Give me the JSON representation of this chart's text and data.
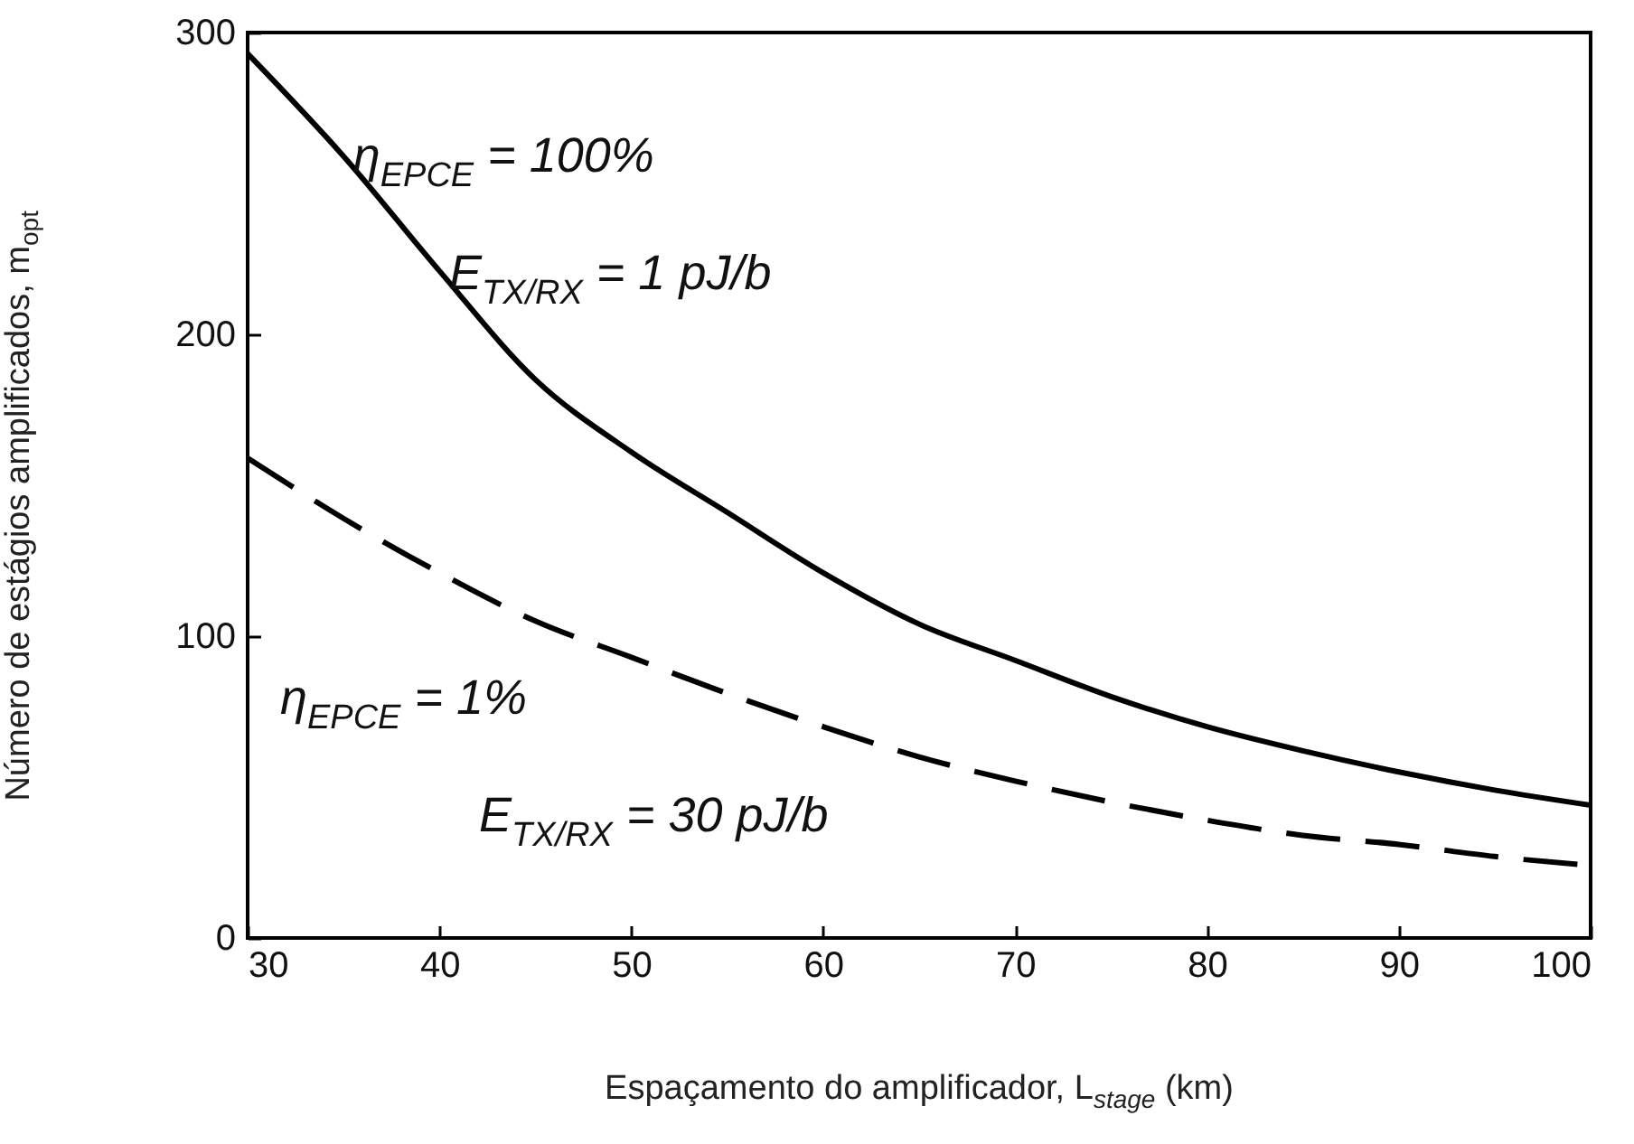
{
  "chart_data": {
    "type": "line",
    "xlabel": "Espaçamento do amplificador, L$_{stage}$ (km)",
    "ylabel": "Número de estágios amplificados, m$_{opt}$",
    "x": [
      30,
      35,
      40,
      45,
      50,
      55,
      60,
      65,
      70,
      75,
      80,
      85,
      90,
      95,
      100
    ],
    "series": [
      {
        "color": "#000000",
        "line_style": "solid",
        "values": [
          293,
          259,
          221,
          185,
          161,
          141,
          121,
          104,
          92,
          80,
          70,
          62,
          55,
          49,
          44
        ]
      },
      {
        "color": "#000000",
        "line_style": "dashed",
        "values": [
          159,
          139,
          121,
          105,
          93,
          81,
          70,
          60,
          52,
          45,
          39,
          34,
          31,
          27,
          24
        ]
      }
    ],
    "xlim": [
      30,
      100
    ],
    "xticks": [
      30,
      40,
      50,
      60,
      70,
      80,
      90,
      100
    ],
    "ylim": [
      0,
      300
    ],
    "yticks": [
      0,
      100,
      200,
      300
    ],
    "annotations": [
      {
        "text": "η$_{EPCE}$ = 100%",
        "x": 35.5,
        "y": 254
      },
      {
        "text": "E$_{TX/RX}$ = 1 pJ/b",
        "x": 40.5,
        "y": 215
      },
      "η$_{EPCE}$ = 1%",
      "E$_{TX/RX}$ = 30 pJ/b"
    ]
  }
}
